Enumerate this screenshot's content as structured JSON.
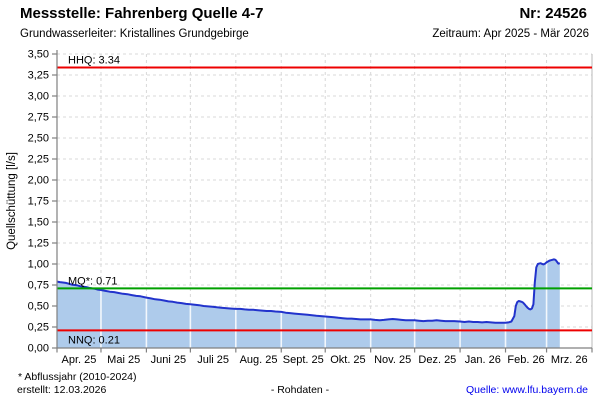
{
  "header": {
    "title": "Messstelle: Fahrenberg Quelle 4-7",
    "station_number": "Nr: 24526",
    "aquifer": "Grundwasserleiter: Kristallines Grundgebirge",
    "period": "Zeitraum: Apr 2025 - Mär 2026"
  },
  "footer": {
    "note": "* Abflussjahr (2010-2024)",
    "created": "erstellt: 12.03.2026",
    "data_type": "- Rohdaten -",
    "source": "Quelle: www.lfu.bayern.de"
  },
  "chart_data": {
    "type": "area",
    "title": "",
    "xlabel": "",
    "ylabel": "Quellschüttung [l/s]",
    "ylim": [
      0,
      3.5
    ],
    "ytick_step": 0.25,
    "x_range": "Apr 2025 - Mär 2026",
    "grid": true,
    "month_labels": [
      "Apr. 25",
      "Mai 25",
      "Juni 25",
      "Juli 25",
      "Aug. 25",
      "Sept. 25",
      "Okt. 25",
      "Nov. 25",
      "Dez. 25",
      "Jan. 26",
      "Feb. 26",
      "Mrz. 26"
    ],
    "month_start_days": [
      0,
      30,
      61,
      91,
      122,
      153,
      183,
      214,
      244,
      275,
      306,
      334,
      365
    ],
    "reference_lines": [
      {
        "name": "HHQ",
        "label": "HHQ: 3.34",
        "value": 3.34,
        "color": "#ee0000",
        "label_side": "above"
      },
      {
        "name": "MQ*",
        "label": "MQ*: 0.71",
        "value": 0.71,
        "color": "#00a000",
        "label_side": "above"
      },
      {
        "name": "NNQ",
        "label": "NNQ: 0.21",
        "value": 0.21,
        "color": "#ee0000",
        "label_side": "below"
      }
    ],
    "series": [
      {
        "name": "Quellschüttung Rohdaten [l/s]",
        "points": [
          [
            0,
            0.79
          ],
          [
            2,
            0.785
          ],
          [
            4,
            0.78
          ],
          [
            6,
            0.775
          ],
          [
            8,
            0.765
          ],
          [
            10,
            0.755
          ],
          [
            12,
            0.75
          ],
          [
            14,
            0.745
          ],
          [
            16,
            0.735
          ],
          [
            18,
            0.73
          ],
          [
            20,
            0.725
          ],
          [
            22,
            0.715
          ],
          [
            24,
            0.71
          ],
          [
            26,
            0.705
          ],
          [
            28,
            0.695
          ],
          [
            30,
            0.69
          ],
          [
            33,
            0.68
          ],
          [
            36,
            0.67
          ],
          [
            39,
            0.665
          ],
          [
            42,
            0.655
          ],
          [
            45,
            0.645
          ],
          [
            48,
            0.64
          ],
          [
            51,
            0.63
          ],
          [
            54,
            0.62
          ],
          [
            57,
            0.615
          ],
          [
            61,
            0.6
          ],
          [
            64,
            0.59
          ],
          [
            67,
            0.58
          ],
          [
            70,
            0.575
          ],
          [
            73,
            0.565
          ],
          [
            76,
            0.555
          ],
          [
            79,
            0.55
          ],
          [
            82,
            0.54
          ],
          [
            85,
            0.535
          ],
          [
            88,
            0.525
          ],
          [
            91,
            0.52
          ],
          [
            94,
            0.515
          ],
          [
            97,
            0.51
          ],
          [
            100,
            0.5
          ],
          [
            103,
            0.495
          ],
          [
            106,
            0.49
          ],
          [
            109,
            0.485
          ],
          [
            112,
            0.48
          ],
          [
            115,
            0.475
          ],
          [
            118,
            0.47
          ],
          [
            122,
            0.465
          ],
          [
            125,
            0.465
          ],
          [
            128,
            0.46
          ],
          [
            131,
            0.455
          ],
          [
            134,
            0.455
          ],
          [
            137,
            0.45
          ],
          [
            140,
            0.445
          ],
          [
            143,
            0.44
          ],
          [
            146,
            0.44
          ],
          [
            149,
            0.435
          ],
          [
            153,
            0.43
          ],
          [
            156,
            0.42
          ],
          [
            159,
            0.415
          ],
          [
            162,
            0.41
          ],
          [
            165,
            0.405
          ],
          [
            168,
            0.4
          ],
          [
            171,
            0.395
          ],
          [
            174,
            0.39
          ],
          [
            177,
            0.385
          ],
          [
            180,
            0.38
          ],
          [
            183,
            0.375
          ],
          [
            186,
            0.37
          ],
          [
            189,
            0.365
          ],
          [
            192,
            0.36
          ],
          [
            195,
            0.355
          ],
          [
            198,
            0.35
          ],
          [
            201,
            0.35
          ],
          [
            204,
            0.345
          ],
          [
            207,
            0.34
          ],
          [
            210,
            0.34
          ],
          [
            214,
            0.34
          ],
          [
            217,
            0.335
          ],
          [
            220,
            0.33
          ],
          [
            223,
            0.335
          ],
          [
            226,
            0.34
          ],
          [
            229,
            0.345
          ],
          [
            232,
            0.34
          ],
          [
            235,
            0.335
          ],
          [
            238,
            0.33
          ],
          [
            241,
            0.33
          ],
          [
            244,
            0.33
          ],
          [
            247,
            0.325
          ],
          [
            250,
            0.32
          ],
          [
            253,
            0.325
          ],
          [
            256,
            0.325
          ],
          [
            259,
            0.33
          ],
          [
            262,
            0.325
          ],
          [
            265,
            0.32
          ],
          [
            268,
            0.32
          ],
          [
            271,
            0.32
          ],
          [
            275,
            0.315
          ],
          [
            278,
            0.31
          ],
          [
            281,
            0.315
          ],
          [
            284,
            0.31
          ],
          [
            287,
            0.31
          ],
          [
            290,
            0.305
          ],
          [
            293,
            0.31
          ],
          [
            296,
            0.305
          ],
          [
            299,
            0.3
          ],
          [
            302,
            0.3
          ],
          [
            306,
            0.3
          ],
          [
            308,
            0.305
          ],
          [
            310,
            0.315
          ],
          [
            312,
            0.38
          ],
          [
            313,
            0.5
          ],
          [
            314,
            0.545
          ],
          [
            315,
            0.56
          ],
          [
            316,
            0.555
          ],
          [
            317,
            0.55
          ],
          [
            318,
            0.54
          ],
          [
            319,
            0.52
          ],
          [
            320,
            0.5
          ],
          [
            321,
            0.48
          ],
          [
            322,
            0.465
          ],
          [
            323,
            0.46
          ],
          [
            324,
            0.47
          ],
          [
            325,
            0.52
          ],
          [
            326,
            0.78
          ],
          [
            327,
            0.96
          ],
          [
            328,
            1.0
          ],
          [
            329,
            1.005
          ],
          [
            330,
            1.01
          ],
          [
            331,
            1.0
          ],
          [
            332,
            0.995
          ],
          [
            333,
            1.005
          ],
          [
            334,
            1.02
          ],
          [
            335,
            1.03
          ],
          [
            336,
            1.04
          ],
          [
            337,
            1.045
          ],
          [
            338,
            1.05
          ],
          [
            339,
            1.055
          ],
          [
            340,
            1.05
          ],
          [
            341,
            1.03
          ],
          [
            342,
            1.005
          ],
          [
            343,
            1.01
          ]
        ]
      }
    ],
    "colors": {
      "line": "#2233cc",
      "fill": "#aecbeb",
      "grid": "#d8d8d8",
      "axis": "#808080",
      "plot_border": "#b8b8b8"
    }
  }
}
